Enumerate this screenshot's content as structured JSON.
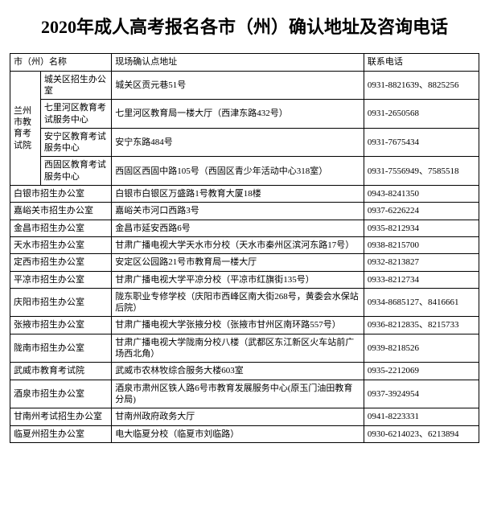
{
  "title": "2020年成人高考报名各市（州）确认地址及咨询电话",
  "headers": {
    "city": "市（州）名称",
    "address": "现场确认点地址",
    "phone": "联系电话"
  },
  "lanzhou_group": {
    "parent": "兰州市教育考试院",
    "rows": [
      {
        "office": "城关区招生办公室",
        "address": "城关区贡元巷51号",
        "phone": "0931-8821639、8825256"
      },
      {
        "office": "七里河区教育考试服务中心",
        "address": "七里河区教育局一楼大厅（西津东路432号）",
        "phone": "0931-2650568"
      },
      {
        "office": "安宁区教育考试服务中心",
        "address": "安宁东路484号",
        "phone": "0931-7675434"
      },
      {
        "office": "西固区教育考试服务中心",
        "address": "西固区西固中路105号（西固区青少年活动中心318室）",
        "phone": "0931-7556949、7585518"
      }
    ]
  },
  "rows": [
    {
      "city": "白银市招生办公室",
      "address": "白银市白银区万盛路1号教育大厦18楼",
      "phone": "0943-8241350"
    },
    {
      "city": "嘉峪关市招生办公室",
      "address": "嘉峪关市河口西路3号",
      "phone": "0937-6226224"
    },
    {
      "city": "金昌市招生办公室",
      "address": "金昌市延安西路6号",
      "phone": "0935-8212934"
    },
    {
      "city": "天水市招生办公室",
      "address": "甘肃广播电视大学天水市分校（天水市秦州区滨河东路17号）",
      "phone": "0938-8215700"
    },
    {
      "city": "定西市招生办公室",
      "address": "安定区公园路21号市教育局一楼大厅",
      "phone": "0932-8213827"
    },
    {
      "city": "平凉市招生办公室",
      "address": "甘肃广播电视大学平凉分校（平凉市红旗街135号）",
      "phone": "0933-8212734"
    },
    {
      "city": "庆阳市招生办公室",
      "address": "陇东职业专修学校（庆阳市西峰区南大街268号，黄委会水保站后院）",
      "phone": "0934-8685127、8416661"
    },
    {
      "city": "张掖市招生办公室",
      "address": "甘肃广播电视大学张掖分校（张掖市甘州区南环路557号）",
      "phone": "0936-8212835、8215733"
    },
    {
      "city": "陇南市招生办公室",
      "address": "甘肃广播电视大学陇南分校八楼（武都区东江新区火车站前广场西北角）",
      "phone": "0939-8218526"
    },
    {
      "city": "武威市教育考试院",
      "address": "武威市农林牧综合服务大楼603室",
      "phone": "0935-2212069"
    },
    {
      "city": "酒泉市招生办公室",
      "address": "酒泉市肃州区铁人路6号市教育发展服务中心(原玉门油田教育分局)",
      "phone": "0937-3924954"
    },
    {
      "city": "甘南州考试招生办公室",
      "address": "甘南州政府政务大厅",
      "phone": "0941-8223331"
    },
    {
      "city": "临夏州招生办公室",
      "address": "电大临夏分校（临夏市刘临路）",
      "phone": "0930-6214023、6213894"
    }
  ]
}
